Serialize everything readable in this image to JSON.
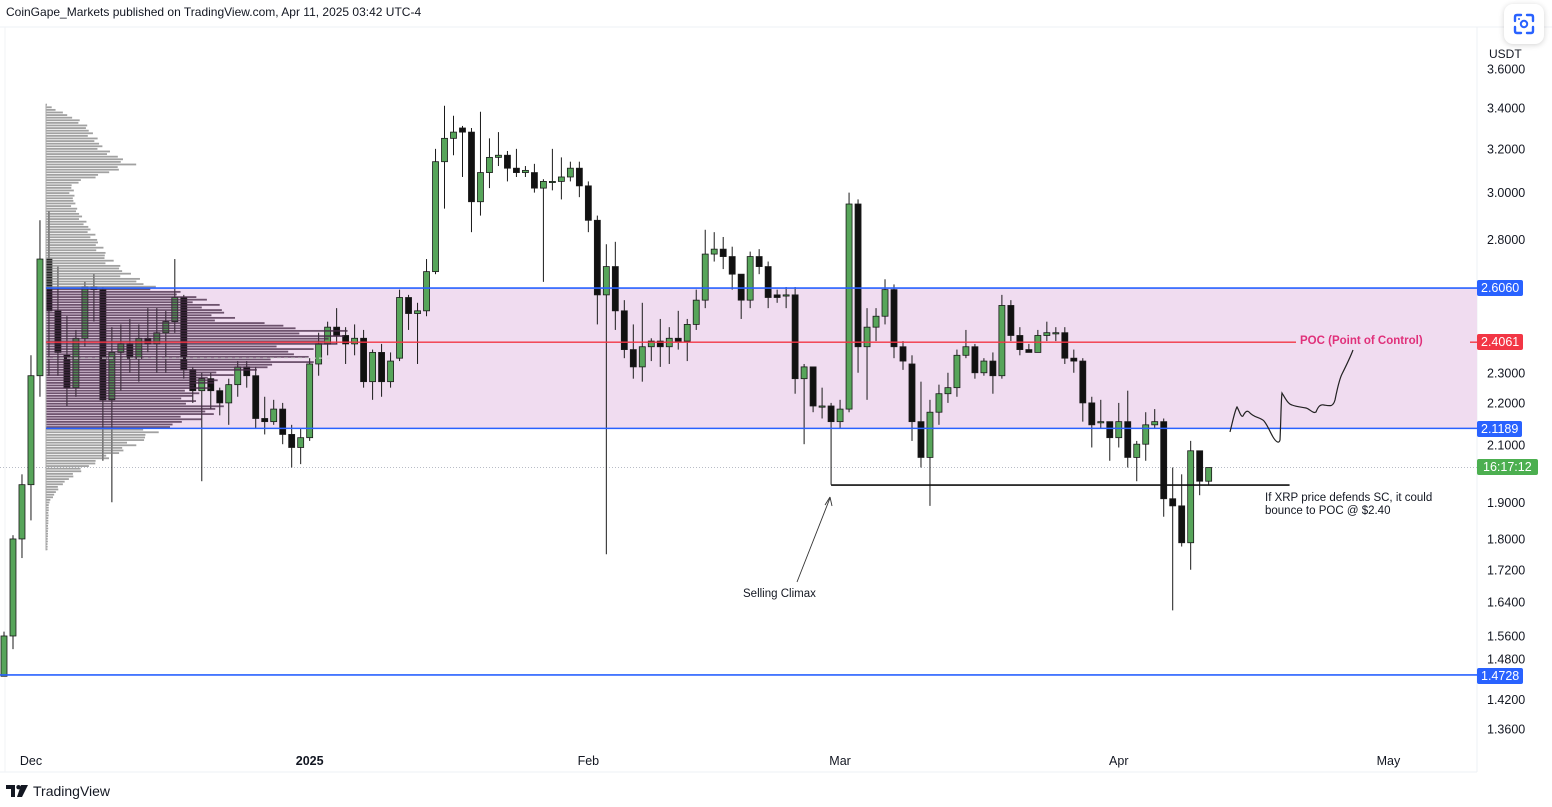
{
  "header": {
    "title": "CoinGape_Markets published on TradingView.com, Apr 11, 2025 03:42 UTC-4"
  },
  "axis": {
    "currency": "USDT",
    "y_ticks": [
      "3.6000",
      "3.4000",
      "3.2000",
      "3.0000",
      "2.8000",
      "2.3000",
      "2.2000",
      "2.1000",
      "1.9000",
      "1.8000",
      "1.7200",
      "1.6400",
      "1.5600",
      "1.4800",
      "1.4200",
      "1.3600"
    ],
    "x_ticks": [
      {
        "label": "Dec",
        "date": "2024-12-01",
        "bold": false
      },
      {
        "label": "2025",
        "date": "2025-01-01",
        "bold": true
      },
      {
        "label": "Feb",
        "date": "2025-02-01",
        "bold": false
      },
      {
        "label": "Mar",
        "date": "2025-03-01",
        "bold": false
      },
      {
        "label": "Apr",
        "date": "2025-04-01",
        "bold": false
      },
      {
        "label": "May",
        "date": "2025-05-01",
        "bold": false
      }
    ]
  },
  "levels": {
    "value_area_high": {
      "value": 2.606,
      "label": "2.6060",
      "color": "#2962ff"
    },
    "poc": {
      "value": 2.4061,
      "label": "2.4061",
      "color": "#f23645",
      "text": "POC (Point of Control)"
    },
    "value_area_low": {
      "value": 2.1189,
      "label": "2.1189",
      "color": "#2962ff"
    },
    "support": {
      "value": 1.4728,
      "label": "1.4728",
      "color": "#2962ff"
    },
    "selling_climax": {
      "value": 1.949,
      "from": "2025-02-28",
      "to": "2025-04-20"
    },
    "current_price": 2.0,
    "countdown": "16:17:12",
    "countdown_color": "#4caf50"
  },
  "annotations": {
    "selling_climax": "Selling Climax",
    "projection_line1": "If XRP price defends SC, it could",
    "projection_line2": "bounce to POC @ $2.40"
  },
  "colors": {
    "up": "#57a55a",
    "down": "#111111",
    "value_area_fill": "#f0dcf0"
  },
  "icons": {
    "screenshot": "camera-scan-icon",
    "brand": "tradingview-logo-icon"
  },
  "footer": {
    "brand": "TradingView"
  },
  "chart_data": {
    "type": "candlestick",
    "scale": "log",
    "ylim": [
      1.33,
      3.75
    ],
    "grid": false,
    "volume_profile": {
      "levels": [
        [
          3.42,
          0
        ],
        [
          3.33,
          13
        ],
        [
          3.2,
          20
        ],
        [
          3.13,
          30
        ],
        [
          3.04,
          9
        ],
        [
          2.94,
          10
        ],
        [
          2.83,
          16
        ],
        [
          2.73,
          21
        ],
        [
          2.66,
          29
        ],
        [
          2.62,
          35
        ],
        [
          2.57,
          54
        ],
        [
          2.52,
          61
        ],
        [
          2.49,
          63
        ],
        [
          2.45,
          100
        ],
        [
          2.41,
          100
        ],
        [
          2.38,
          87
        ],
        [
          2.34,
          89
        ],
        [
          2.3,
          63
        ],
        [
          2.25,
          54
        ],
        [
          2.21,
          49
        ],
        [
          2.19,
          61
        ],
        [
          2.15,
          52
        ],
        [
          2.12,
          39
        ],
        [
          2.1,
          36
        ],
        [
          2.05,
          26
        ],
        [
          2.0,
          13
        ],
        [
          1.95,
          5
        ],
        [
          1.9,
          1
        ],
        [
          1.77,
          0.5
        ]
      ],
      "value_area": [
        2.1189,
        2.606
      ],
      "dashed_level": 2.35
    },
    "candles": [
      [
        "2024-11-28",
        1.47,
        1.57,
        1.47,
        1.56
      ],
      [
        "2024-11-29",
        1.56,
        1.81,
        1.53,
        1.8
      ],
      [
        "2024-11-30",
        1.8,
        1.98,
        1.75,
        1.95
      ],
      [
        "2024-12-01",
        1.95,
        2.36,
        1.85,
        2.29
      ],
      [
        "2024-12-02",
        2.29,
        2.88,
        2.22,
        2.72
      ],
      [
        "2024-12-03",
        2.72,
        2.92,
        2.29,
        2.52
      ],
      [
        "2024-12-04",
        2.52,
        2.69,
        2.29,
        2.37
      ],
      [
        "2024-12-05",
        2.36,
        2.5,
        2.19,
        2.25
      ],
      [
        "2024-12-06",
        2.25,
        2.45,
        2.22,
        2.42
      ],
      [
        "2024-12-07",
        2.42,
        2.63,
        2.39,
        2.61
      ],
      [
        "2024-12-08",
        2.61,
        2.66,
        2.48,
        2.6
      ],
      [
        "2024-12-09",
        2.6,
        2.61,
        2.02,
        2.21
      ],
      [
        "2024-12-10",
        2.21,
        2.46,
        1.9,
        2.37
      ],
      [
        "2024-12-11",
        2.37,
        2.47,
        2.24,
        2.4
      ],
      [
        "2024-12-12",
        2.4,
        2.49,
        2.3,
        2.35
      ],
      [
        "2024-12-13",
        2.35,
        2.47,
        2.27,
        2.42
      ],
      [
        "2024-12-14",
        2.42,
        2.53,
        2.37,
        2.4
      ],
      [
        "2024-12-15",
        2.4,
        2.53,
        2.3,
        2.44
      ],
      [
        "2024-12-16",
        2.44,
        2.52,
        2.3,
        2.48
      ],
      [
        "2024-12-17",
        2.48,
        2.72,
        2.44,
        2.57
      ],
      [
        "2024-12-18",
        2.57,
        2.58,
        2.28,
        2.31
      ],
      [
        "2024-12-19",
        2.31,
        2.32,
        2.2,
        2.24
      ],
      [
        "2024-12-20",
        2.24,
        2.3,
        1.96,
        2.28
      ],
      [
        "2024-12-21",
        2.28,
        2.3,
        2.18,
        2.24
      ],
      [
        "2024-12-22",
        2.24,
        2.25,
        2.16,
        2.2
      ],
      [
        "2024-12-23",
        2.2,
        2.28,
        2.13,
        2.26
      ],
      [
        "2024-12-24",
        2.26,
        2.34,
        2.22,
        2.32
      ],
      [
        "2024-12-25",
        2.32,
        2.34,
        2.25,
        2.29
      ],
      [
        "2024-12-26",
        2.29,
        2.32,
        2.12,
        2.15
      ],
      [
        "2024-12-27",
        2.15,
        2.22,
        2.1,
        2.14
      ],
      [
        "2024-12-28",
        2.14,
        2.21,
        2.13,
        2.18
      ],
      [
        "2024-12-29",
        2.18,
        2.2,
        2.07,
        2.1
      ],
      [
        "2024-12-30",
        2.1,
        2.13,
        2.0,
        2.06
      ],
      [
        "2024-12-31",
        2.06,
        2.12,
        2.01,
        2.09
      ],
      [
        "2025-01-01",
        2.09,
        2.35,
        2.08,
        2.33
      ],
      [
        "2025-01-02",
        2.33,
        2.44,
        2.29,
        2.4
      ],
      [
        "2025-01-03",
        2.4,
        2.48,
        2.36,
        2.46
      ],
      [
        "2025-01-04",
        2.46,
        2.53,
        2.4,
        2.43
      ],
      [
        "2025-01-05",
        2.43,
        2.46,
        2.33,
        2.4
      ],
      [
        "2025-01-06",
        2.4,
        2.47,
        2.36,
        2.42
      ],
      [
        "2025-01-07",
        2.42,
        2.45,
        2.25,
        2.27
      ],
      [
        "2025-01-08",
        2.27,
        2.38,
        2.21,
        2.37
      ],
      [
        "2025-01-09",
        2.37,
        2.4,
        2.22,
        2.27
      ],
      [
        "2025-01-10",
        2.27,
        2.37,
        2.25,
        2.34
      ],
      [
        "2025-01-11",
        2.35,
        2.6,
        2.34,
        2.57
      ],
      [
        "2025-01-12",
        2.57,
        2.58,
        2.45,
        2.51
      ],
      [
        "2025-01-13",
        2.51,
        2.55,
        2.33,
        2.52
      ],
      [
        "2025-01-14",
        2.52,
        2.72,
        2.5,
        2.67
      ],
      [
        "2025-01-15",
        2.67,
        3.2,
        2.66,
        3.14
      ],
      [
        "2025-01-16",
        3.14,
        3.41,
        2.93,
        3.25
      ],
      [
        "2025-01-17",
        3.25,
        3.36,
        3.17,
        3.28
      ],
      [
        "2025-01-18",
        3.3,
        3.31,
        3.07,
        3.28
      ],
      [
        "2025-01-19",
        3.28,
        3.3,
        2.83,
        2.96
      ],
      [
        "2025-01-20",
        2.96,
        3.38,
        2.9,
        3.09
      ],
      [
        "2025-01-21",
        3.09,
        3.25,
        3.02,
        3.16
      ],
      [
        "2025-01-22",
        3.16,
        3.28,
        3.12,
        3.17
      ],
      [
        "2025-01-23",
        3.17,
        3.19,
        3.05,
        3.11
      ],
      [
        "2025-01-24",
        3.11,
        3.2,
        3.07,
        3.09
      ],
      [
        "2025-01-25",
        3.09,
        3.12,
        3.07,
        3.1
      ],
      [
        "2025-01-26",
        3.09,
        3.13,
        3.0,
        3.02
      ],
      [
        "2025-01-27",
        3.02,
        3.06,
        2.63,
        3.05
      ],
      [
        "2025-01-28",
        3.05,
        3.2,
        3.01,
        3.05
      ],
      [
        "2025-01-29",
        3.05,
        3.16,
        2.97,
        3.07
      ],
      [
        "2025-01-30",
        3.07,
        3.14,
        3.05,
        3.11
      ],
      [
        "2025-01-31",
        3.11,
        3.14,
        2.98,
        3.03
      ],
      [
        "2025-02-01",
        3.03,
        3.05,
        2.83,
        2.88
      ],
      [
        "2025-02-02",
        2.88,
        2.9,
        2.47,
        2.58
      ],
      [
        "2025-02-03",
        2.58,
        2.78,
        1.76,
        2.69
      ],
      [
        "2025-02-04",
        2.69,
        2.79,
        2.45,
        2.52
      ],
      [
        "2025-02-05",
        2.52,
        2.56,
        2.35,
        2.38
      ],
      [
        "2025-02-06",
        2.38,
        2.47,
        2.28,
        2.32
      ],
      [
        "2025-02-07",
        2.32,
        2.55,
        2.27,
        2.39
      ],
      [
        "2025-02-08",
        2.39,
        2.42,
        2.34,
        2.41
      ],
      [
        "2025-02-09",
        2.41,
        2.49,
        2.32,
        2.39
      ],
      [
        "2025-02-10",
        2.39,
        2.46,
        2.33,
        2.42
      ],
      [
        "2025-02-11",
        2.42,
        2.52,
        2.38,
        2.41
      ],
      [
        "2025-02-12",
        2.41,
        2.49,
        2.34,
        2.47
      ],
      [
        "2025-02-13",
        2.47,
        2.6,
        2.45,
        2.56
      ],
      [
        "2025-02-14",
        2.56,
        2.84,
        2.53,
        2.74
      ],
      [
        "2025-02-15",
        2.74,
        2.83,
        2.71,
        2.76
      ],
      [
        "2025-02-16",
        2.76,
        2.81,
        2.68,
        2.73
      ],
      [
        "2025-02-17",
        2.73,
        2.77,
        2.6,
        2.66
      ],
      [
        "2025-02-18",
        2.66,
        2.66,
        2.49,
        2.56
      ],
      [
        "2025-02-19",
        2.56,
        2.75,
        2.53,
        2.73
      ],
      [
        "2025-02-20",
        2.73,
        2.76,
        2.66,
        2.69
      ],
      [
        "2025-02-21",
        2.69,
        2.71,
        2.53,
        2.57
      ],
      [
        "2025-02-22",
        2.58,
        2.6,
        2.55,
        2.57
      ],
      [
        "2025-02-23",
        2.58,
        2.61,
        2.53,
        2.58
      ],
      [
        "2025-02-24",
        2.58,
        2.61,
        2.23,
        2.28
      ],
      [
        "2025-02-25",
        2.28,
        2.33,
        2.07,
        2.32
      ],
      [
        "2025-02-26",
        2.32,
        2.32,
        2.17,
        2.19
      ],
      [
        "2025-02-27",
        2.19,
        2.25,
        2.15,
        2.19
      ],
      [
        "2025-02-28",
        2.19,
        2.2,
        1.95,
        2.14
      ],
      [
        "2025-03-01",
        2.14,
        2.21,
        2.12,
        2.18
      ],
      [
        "2025-03-02",
        2.18,
        3.0,
        2.17,
        2.95
      ],
      [
        "2025-03-03",
        2.95,
        2.97,
        2.3,
        2.39
      ],
      [
        "2025-03-04",
        2.39,
        2.53,
        2.21,
        2.46
      ],
      [
        "2025-03-05",
        2.46,
        2.53,
        2.41,
        2.5
      ],
      [
        "2025-03-06",
        2.5,
        2.64,
        2.47,
        2.6
      ],
      [
        "2025-03-07",
        2.6,
        2.62,
        2.35,
        2.39
      ],
      [
        "2025-03-08",
        2.39,
        2.41,
        2.31,
        2.34
      ],
      [
        "2025-03-09",
        2.33,
        2.36,
        2.08,
        2.14
      ],
      [
        "2025-03-10",
        2.14,
        2.27,
        2.0,
        2.03
      ],
      [
        "2025-03-11",
        2.03,
        2.21,
        1.89,
        2.17
      ],
      [
        "2025-03-12",
        2.17,
        2.26,
        2.13,
        2.23
      ],
      [
        "2025-03-13",
        2.23,
        2.3,
        2.2,
        2.25
      ],
      [
        "2025-03-14",
        2.25,
        2.38,
        2.22,
        2.36
      ],
      [
        "2025-03-15",
        2.36,
        2.45,
        2.35,
        2.39
      ],
      [
        "2025-03-16",
        2.39,
        2.4,
        2.28,
        2.3
      ],
      [
        "2025-03-17",
        2.3,
        2.35,
        2.29,
        2.34
      ],
      [
        "2025-03-18",
        2.34,
        2.37,
        2.23,
        2.29
      ],
      [
        "2025-03-19",
        2.29,
        2.58,
        2.28,
        2.54
      ],
      [
        "2025-03-20",
        2.54,
        2.56,
        2.41,
        2.43
      ],
      [
        "2025-03-21",
        2.43,
        2.46,
        2.36,
        2.38
      ],
      [
        "2025-03-22",
        2.38,
        2.4,
        2.37,
        2.37
      ],
      [
        "2025-03-23",
        2.37,
        2.45,
        2.37,
        2.43
      ],
      [
        "2025-03-24",
        2.43,
        2.48,
        2.41,
        2.44
      ],
      [
        "2025-03-25",
        2.44,
        2.46,
        2.41,
        2.44
      ],
      [
        "2025-03-26",
        2.44,
        2.46,
        2.33,
        2.35
      ],
      [
        "2025-03-27",
        2.35,
        2.38,
        2.3,
        2.34
      ],
      [
        "2025-03-28",
        2.34,
        2.35,
        2.14,
        2.2
      ],
      [
        "2025-03-29",
        2.2,
        2.22,
        2.06,
        2.13
      ],
      [
        "2025-03-30",
        2.14,
        2.21,
        2.12,
        2.14
      ],
      [
        "2025-03-31",
        2.14,
        2.14,
        2.02,
        2.09
      ],
      [
        "2025-04-01",
        2.09,
        2.2,
        2.06,
        2.14
      ],
      [
        "2025-04-02",
        2.14,
        2.24,
        2.0,
        2.03
      ],
      [
        "2025-04-03",
        2.03,
        2.08,
        1.96,
        2.07
      ],
      [
        "2025-04-04",
        2.07,
        2.17,
        2.02,
        2.13
      ],
      [
        "2025-04-05",
        2.13,
        2.18,
        2.12,
        2.14
      ],
      [
        "2025-04-06",
        2.14,
        2.15,
        1.86,
        1.91
      ],
      [
        "2025-04-07",
        1.91,
        2.0,
        1.62,
        1.89
      ],
      [
        "2025-04-08",
        1.89,
        1.98,
        1.78,
        1.79
      ],
      [
        "2025-04-09",
        1.79,
        2.08,
        1.72,
        2.05
      ],
      [
        "2025-04-10",
        2.05,
        2.05,
        1.92,
        1.96
      ],
      [
        "2025-04-11",
        1.96,
        2.0,
        1.95,
        2.0
      ]
    ]
  }
}
